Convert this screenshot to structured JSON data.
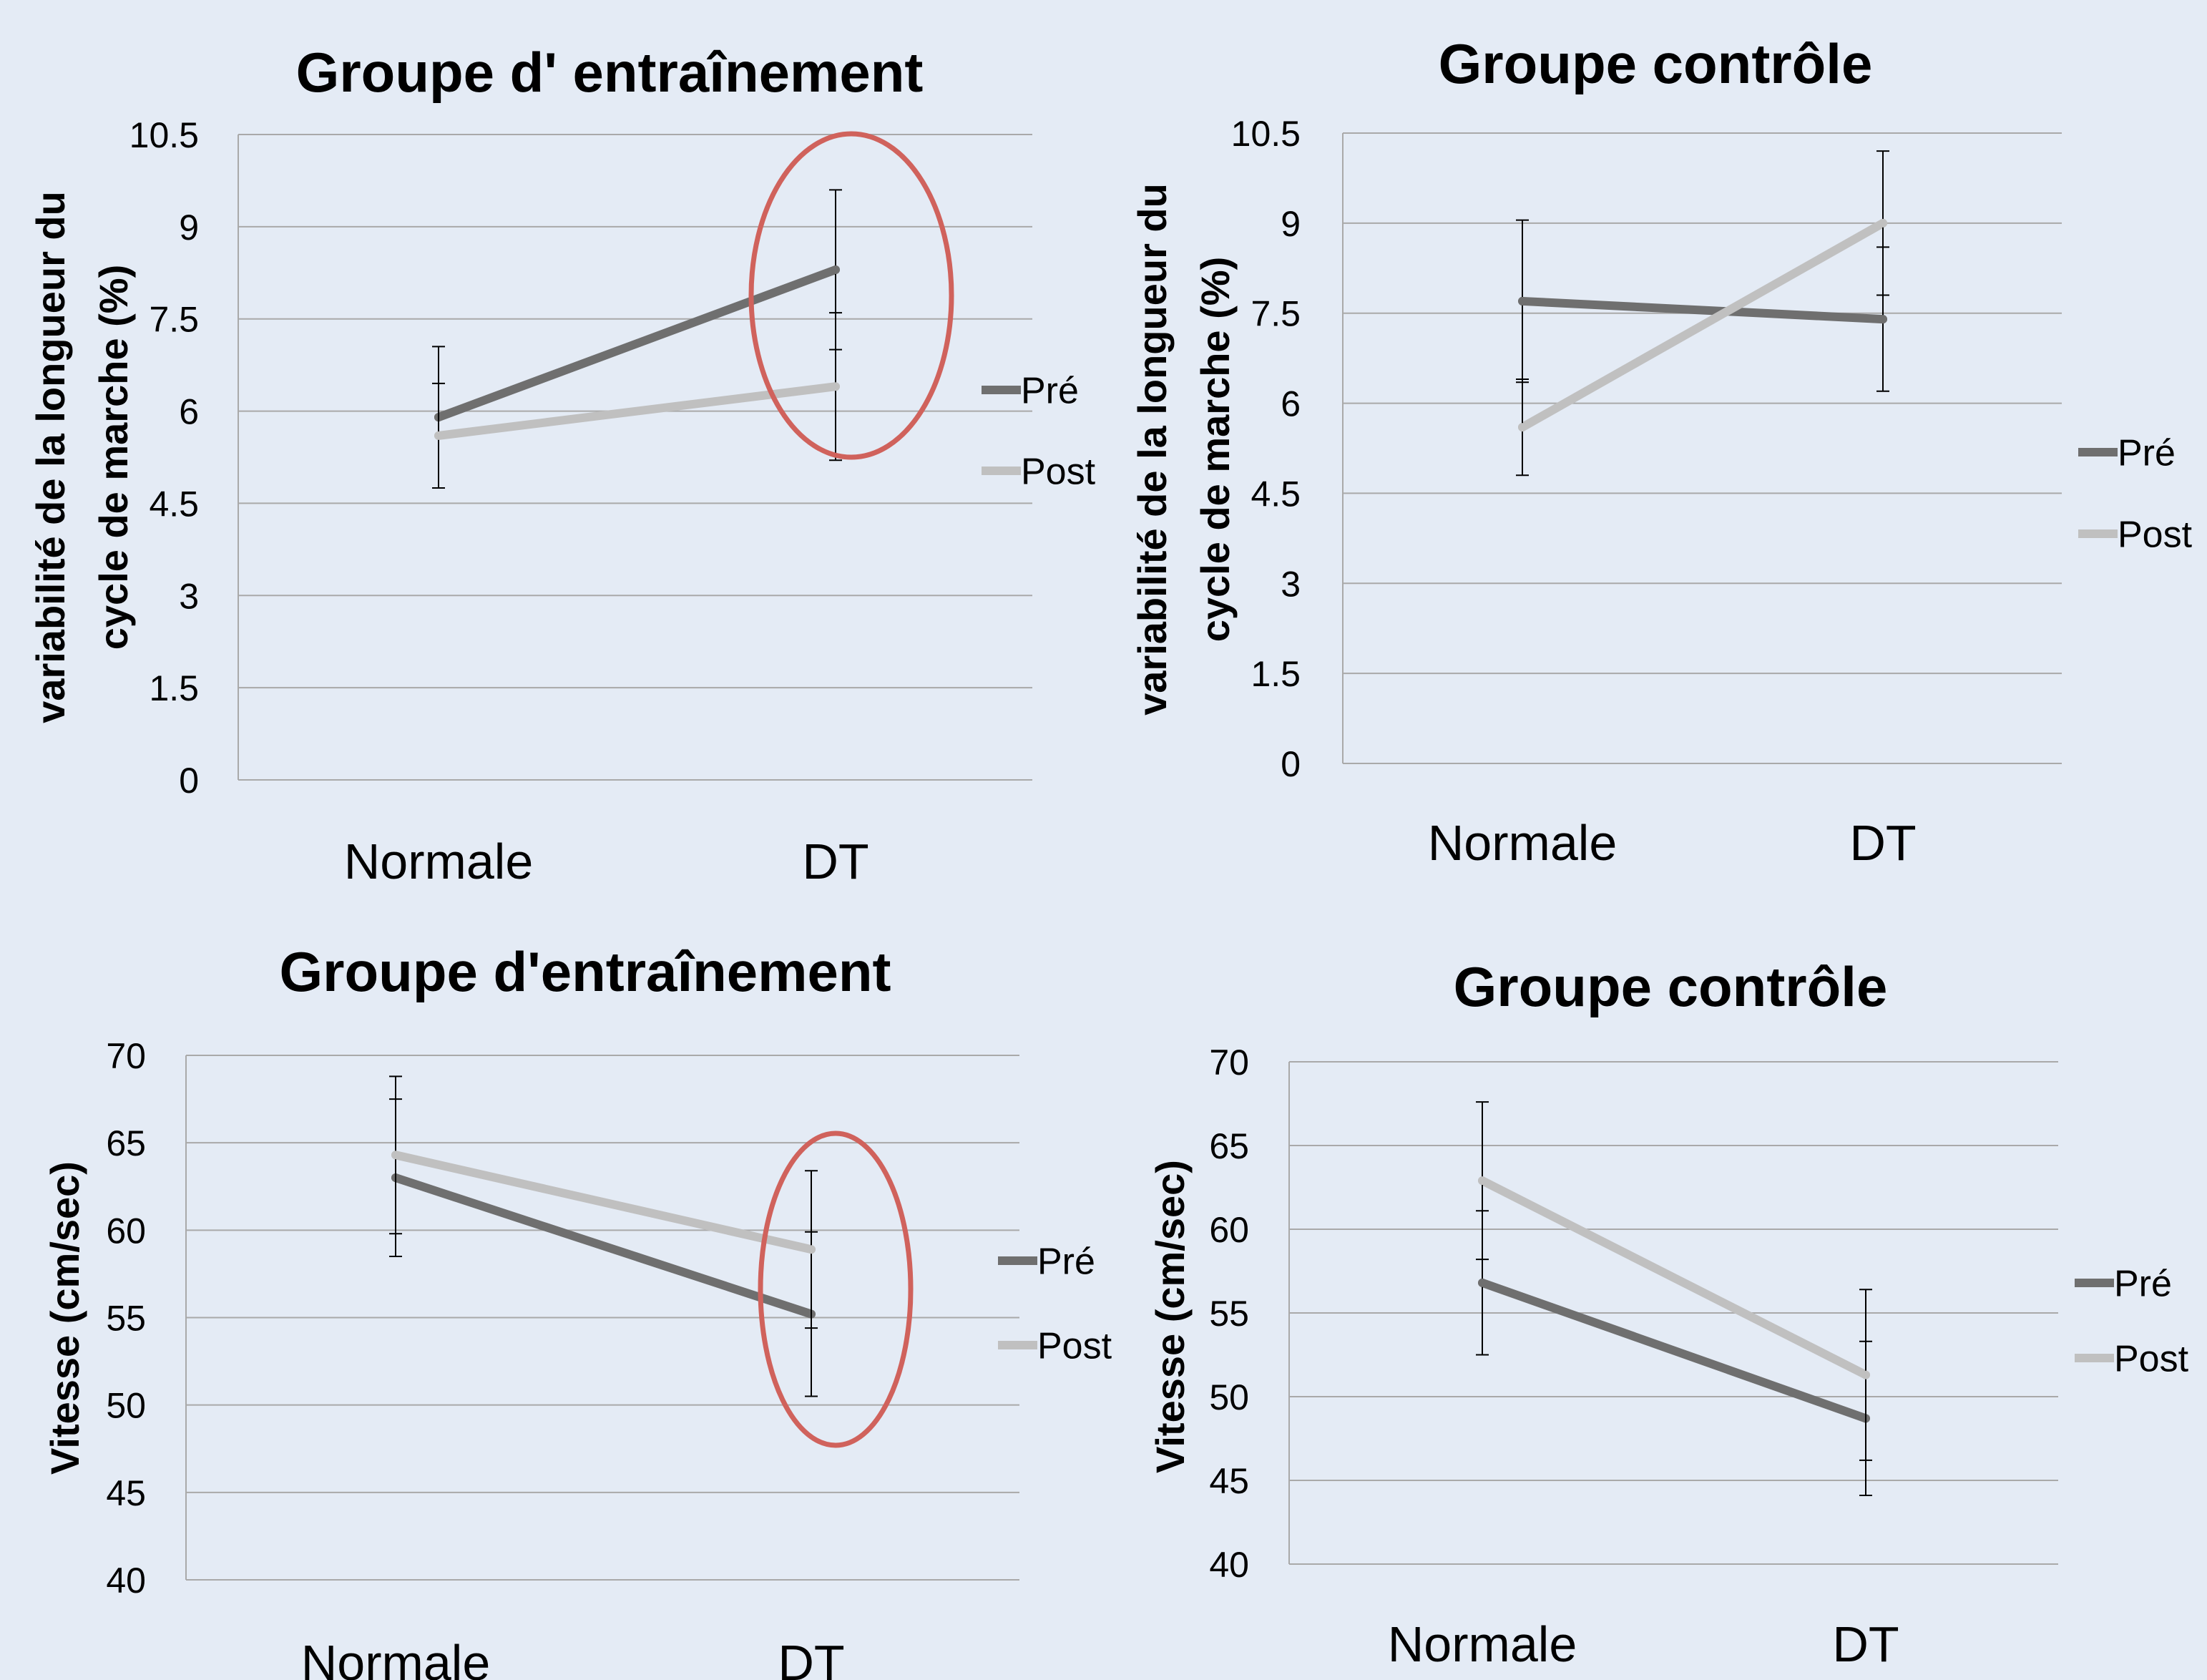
{
  "colors": {
    "pre": "#6f6f6f",
    "post": "#c0c0c0",
    "grid": "#a9a9a9",
    "highlight": "#d0625c",
    "background": "#e4ebf5"
  },
  "chart_data": [
    {
      "type": "line",
      "title": "Groupe d' entraînement",
      "xlabel": "",
      "ylabel": "variabilité de la longueur du cycle de marche (%)",
      "ylabel_lines": [
        "variabilité de la longueur du",
        "cycle de marche (%)"
      ],
      "categories": [
        "Normale",
        "DT"
      ],
      "ylim": [
        0,
        10.5
      ],
      "yticks": [
        "0",
        "1.5",
        "3",
        "4.5",
        "6",
        "7.5",
        "9",
        "10.5"
      ],
      "series": [
        {
          "name": "Pré",
          "values": [
            5.9,
            8.3
          ],
          "errors": [
            1.15,
            1.3
          ]
        },
        {
          "name": "Post",
          "values": [
            5.6,
            6.4
          ],
          "errors": [
            0.85,
            1.2
          ]
        }
      ],
      "legend": "right",
      "grid": true,
      "highlight_category": "DT"
    },
    {
      "type": "line",
      "title": "Groupe contrôle",
      "xlabel": "",
      "ylabel": "variabilité de la longueur du cycle de marche (%)",
      "ylabel_lines": [
        "variabilité de la longueur du",
        "cycle de marche (%)"
      ],
      "categories": [
        "Normale",
        "DT"
      ],
      "ylim": [
        0,
        10.5
      ],
      "yticks": [
        "0",
        "1.5",
        "3",
        "4.5",
        "6",
        "7.5",
        "9",
        "10.5"
      ],
      "series": [
        {
          "name": "Pré",
          "values": [
            7.7,
            7.4
          ],
          "errors": [
            1.35,
            1.2
          ]
        },
        {
          "name": "Post",
          "values": [
            5.6,
            9.0
          ],
          "errors": [
            0.8,
            1.2
          ]
        }
      ],
      "legend": "right",
      "grid": true
    },
    {
      "type": "line",
      "title": "Groupe d'entraînement",
      "xlabel": "",
      "ylabel": "Vitesse (cm/sec)",
      "ylabel_lines": [
        "Vitesse (cm/sec)"
      ],
      "categories": [
        "Normale",
        "DT"
      ],
      "ylim": [
        40,
        70
      ],
      "yticks": [
        "40",
        "45",
        "50",
        "55",
        "60",
        "65",
        "70"
      ],
      "series": [
        {
          "name": "Pré",
          "values": [
            63.0,
            55.2
          ],
          "errors": [
            4.5,
            4.7
          ]
        },
        {
          "name": "Post",
          "values": [
            64.3,
            58.9
          ],
          "errors": [
            4.5,
            4.5
          ]
        }
      ],
      "legend": "right",
      "grid": true,
      "highlight_category": "DT"
    },
    {
      "type": "line",
      "title": "Groupe contrôle",
      "xlabel": "",
      "ylabel": "Vitesse (cm/sec)",
      "ylabel_lines": [
        "Vitesse (cm/sec)"
      ],
      "categories": [
        "Normale",
        "DT"
      ],
      "ylim": [
        40,
        70
      ],
      "yticks": [
        "40",
        "45",
        "50",
        "55",
        "60",
        "65",
        "70"
      ],
      "series": [
        {
          "name": "Pré",
          "values": [
            56.8,
            48.7
          ],
          "errors": [
            4.3,
            4.6
          ]
        },
        {
          "name": "Post",
          "values": [
            62.9,
            51.3
          ],
          "errors": [
            4.7,
            5.1
          ]
        }
      ],
      "legend": "right",
      "grid": true
    }
  ]
}
